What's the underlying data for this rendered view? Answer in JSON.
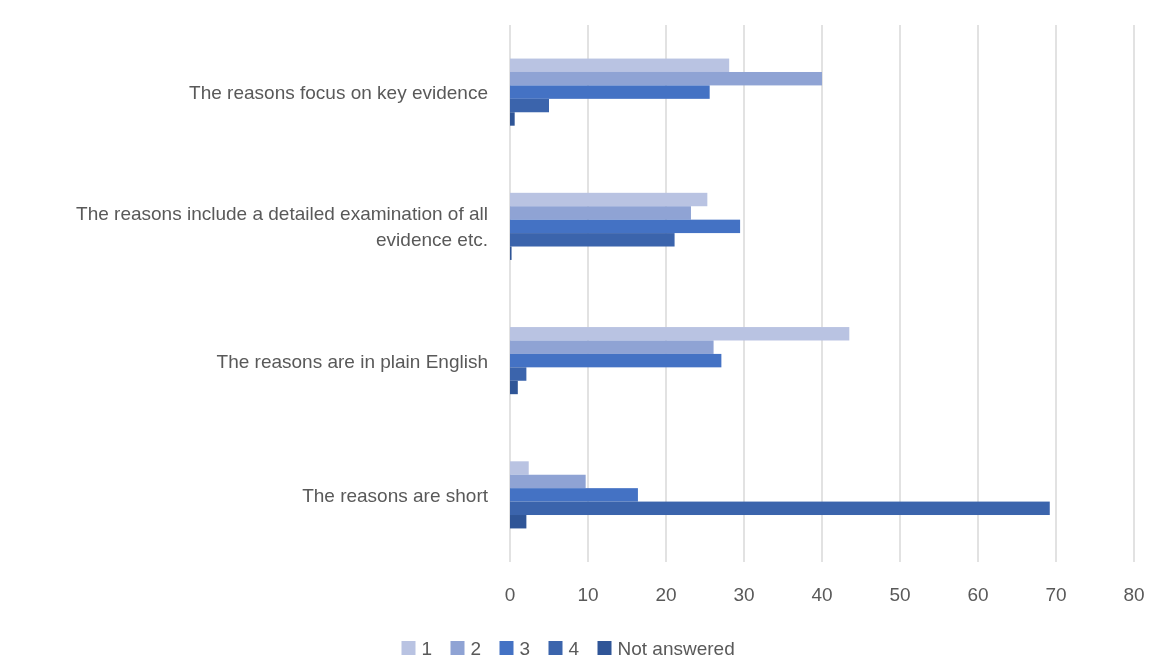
{
  "chart_data": {
    "type": "bar",
    "orientation": "horizontal",
    "categories": [
      "The reasons focus on key evidence",
      "The reasons include a detailed examination of all evidence etc.",
      "The reasons are in plain English",
      "The reasons are short"
    ],
    "series": [
      {
        "name": "1",
        "color": "#b9c3e2",
        "values": [
          28.1,
          25.3,
          43.5,
          2.4
        ]
      },
      {
        "name": "2",
        "color": "#8fa3d4",
        "values": [
          40.0,
          23.2,
          26.1,
          9.7
        ]
      },
      {
        "name": "3",
        "color": "#4472c4",
        "values": [
          25.6,
          29.5,
          27.1,
          16.4
        ]
      },
      {
        "name": "4",
        "color": "#3b64ac",
        "values": [
          5.0,
          21.1,
          2.1,
          69.2
        ]
      },
      {
        "name": "Not answered",
        "color": "#2f5597",
        "values": [
          0.6,
          0.2,
          1.0,
          2.1
        ]
      }
    ],
    "xlim": [
      0,
      80
    ],
    "xticks": [
      0,
      10,
      20,
      30,
      40,
      50,
      60,
      70,
      80
    ],
    "grid": "x",
    "legend": "bottom"
  }
}
